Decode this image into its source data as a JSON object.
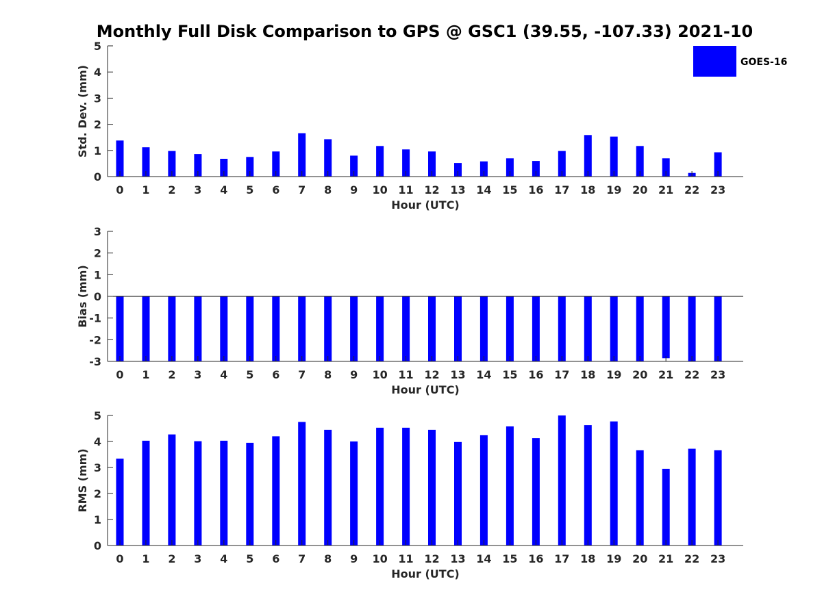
{
  "figure": {
    "title": "Monthly Full Disk Comparison to GPS @ GSC1 (39.55, -107.33) 2021-10",
    "legend": {
      "label": "GOES-16",
      "color": "#0000ff",
      "placement": "top-right"
    }
  },
  "chart_data": [
    {
      "type": "bar",
      "xlabel": "Hour (UTC)",
      "ylabel": "Std. Dev. (mm)",
      "categories": [
        "0",
        "1",
        "2",
        "3",
        "4",
        "5",
        "6",
        "7",
        "8",
        "9",
        "10",
        "11",
        "12",
        "13",
        "14",
        "15",
        "16",
        "17",
        "18",
        "19",
        "20",
        "21",
        "22",
        "23"
      ],
      "series": [
        {
          "name": "GOES-16",
          "color": "#0000ff",
          "values": [
            1.38,
            1.12,
            0.98,
            0.86,
            0.68,
            0.75,
            0.96,
            1.66,
            1.43,
            0.8,
            1.17,
            1.04,
            0.96,
            0.52,
            0.58,
            0.7,
            0.6,
            0.98,
            1.59,
            1.53,
            1.17,
            0.7,
            0.14,
            0.93
          ]
        }
      ],
      "ylim": [
        0,
        5
      ],
      "yticks": [
        0,
        1,
        2,
        3,
        4,
        5
      ],
      "grid": false
    },
    {
      "type": "bar",
      "xlabel": "Hour (UTC)",
      "ylabel": "Bias (mm)",
      "categories": [
        "0",
        "1",
        "2",
        "3",
        "4",
        "5",
        "6",
        "7",
        "8",
        "9",
        "10",
        "11",
        "12",
        "13",
        "14",
        "15",
        "16",
        "17",
        "18",
        "19",
        "20",
        "21",
        "22",
        "23"
      ],
      "series": [
        {
          "name": "GOES-16",
          "color": "#0000ff",
          "values": [
            -3,
            -3,
            -3,
            -3,
            -3,
            -3,
            -3,
            -3,
            -3,
            -3,
            -3,
            -3,
            -3,
            -3,
            -3,
            -3,
            -3,
            -3,
            -3,
            -3,
            -3,
            -2.85,
            -3,
            -3
          ]
        }
      ],
      "ylim": [
        -3,
        3
      ],
      "yticks": [
        -3,
        -2,
        -1,
        0,
        1,
        2,
        3
      ],
      "grid": false
    },
    {
      "type": "bar",
      "xlabel": "Hour (UTC)",
      "ylabel": "RMS (mm)",
      "categories": [
        "0",
        "1",
        "2",
        "3",
        "4",
        "5",
        "6",
        "7",
        "8",
        "9",
        "10",
        "11",
        "12",
        "13",
        "14",
        "15",
        "16",
        "17",
        "18",
        "19",
        "20",
        "21",
        "22",
        "23"
      ],
      "series": [
        {
          "name": "GOES-16",
          "color": "#0000ff",
          "values": [
            3.34,
            4.03,
            4.27,
            4.01,
            4.03,
            3.95,
            4.2,
            4.75,
            4.45,
            4.0,
            4.53,
            4.53,
            4.45,
            3.98,
            4.24,
            4.58,
            4.13,
            5.0,
            4.63,
            4.77,
            3.66,
            2.95,
            3.72,
            3.66
          ]
        }
      ],
      "ylim": [
        0,
        5
      ],
      "yticks": [
        0,
        1,
        2,
        3,
        4,
        5
      ],
      "grid": false
    }
  ]
}
